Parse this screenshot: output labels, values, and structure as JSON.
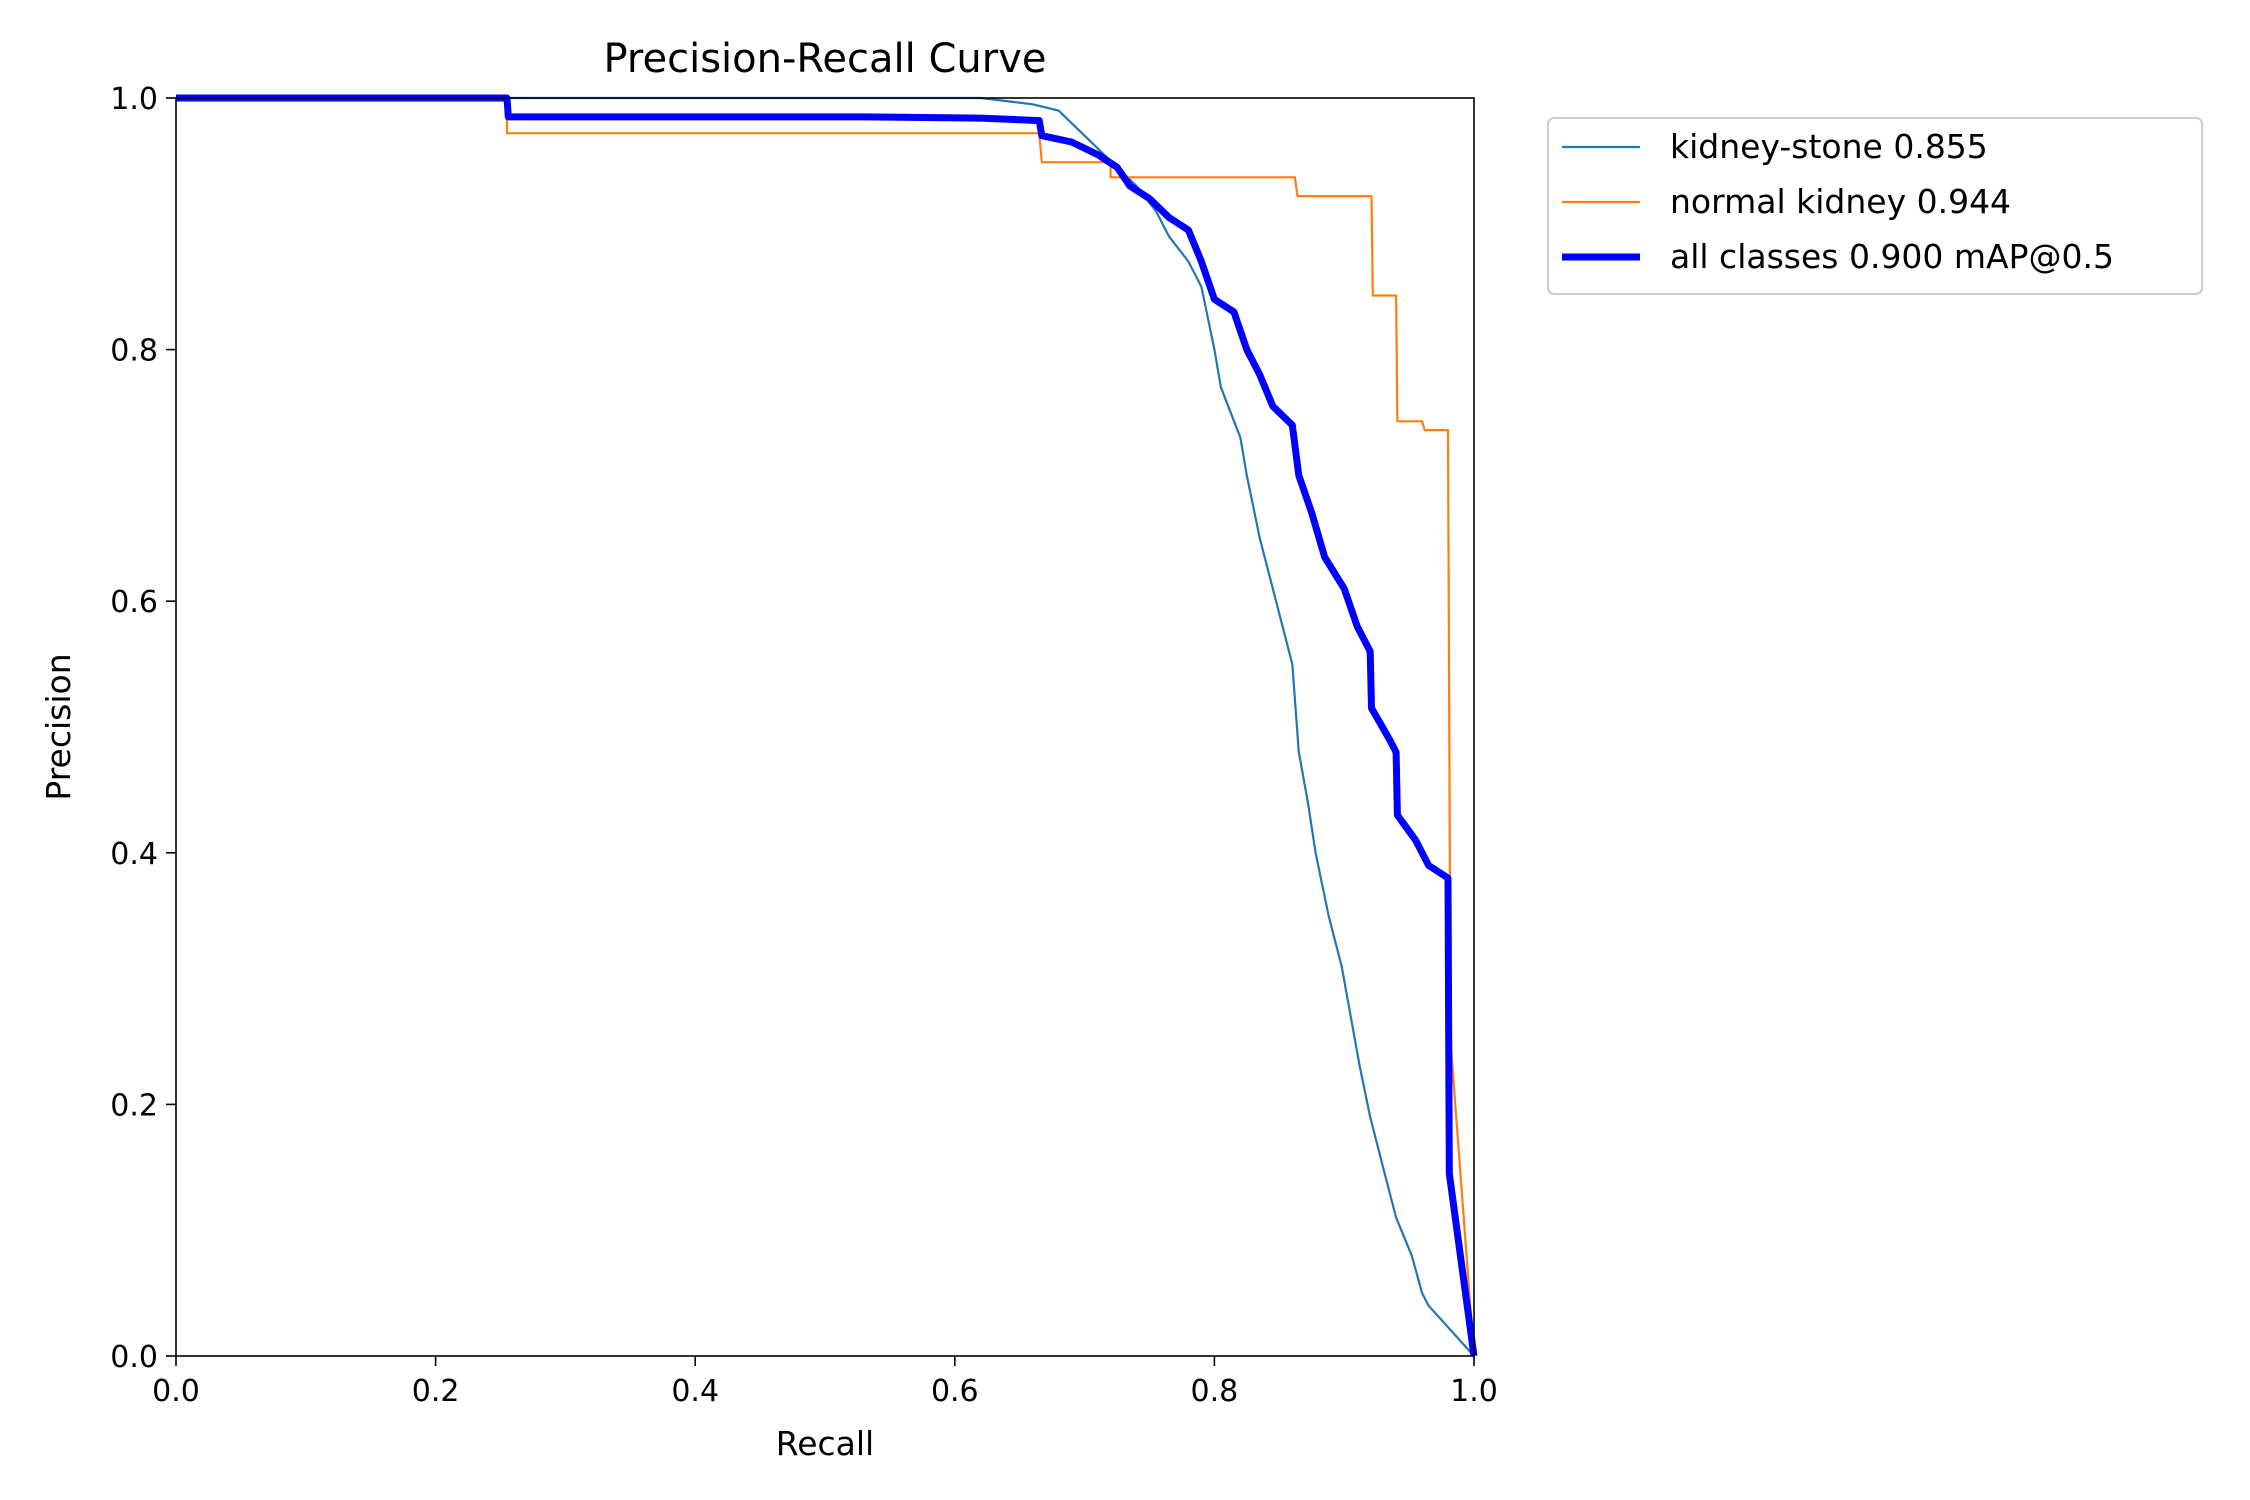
{
  "chart_data": {
    "type": "line",
    "title": "Precision-Recall Curve",
    "xlabel": "Recall",
    "ylabel": "Precision",
    "xlim": [
      0,
      1
    ],
    "ylim": [
      0,
      1
    ],
    "xticks": [
      "0.0",
      "0.2",
      "0.4",
      "0.6",
      "0.8",
      "1.0"
    ],
    "yticks": [
      "0.0",
      "0.2",
      "0.4",
      "0.6",
      "0.8",
      "1.0"
    ],
    "grid": false,
    "legend_placement": "outside-top-right",
    "series": [
      {
        "name": "kidney-stone 0.855",
        "color": "#1f77b4",
        "x": [
          0,
          0.62,
          0.66,
          0.68,
          0.7,
          0.72,
          0.74,
          0.755,
          0.765,
          0.78,
          0.79,
          0.8,
          0.805,
          0.82,
          0.825,
          0.835,
          0.845,
          0.855,
          0.86,
          0.865,
          0.872,
          0.878,
          0.888,
          0.898,
          0.905,
          0.912,
          0.92,
          0.93,
          0.94,
          0.952,
          0.96,
          0.965,
          1.0
        ],
        "y": [
          1,
          1,
          0.995,
          0.99,
          0.97,
          0.95,
          0.93,
          0.91,
          0.89,
          0.87,
          0.85,
          0.8,
          0.77,
          0.73,
          0.7,
          0.65,
          0.61,
          0.57,
          0.55,
          0.48,
          0.44,
          0.4,
          0.35,
          0.31,
          0.27,
          0.23,
          0.19,
          0.15,
          0.11,
          0.08,
          0.05,
          0.04,
          0
        ]
      },
      {
        "name": "normal kidney 0.944",
        "color": "#ff7f0e",
        "x": [
          0,
          0.255,
          0.255,
          0.665,
          0.667,
          0.72,
          0.72,
          0.862,
          0.864,
          0.921,
          0.922,
          0.94,
          0.941,
          0.96,
          0.962,
          0.98,
          0.982,
          1.0
        ],
        "y": [
          1,
          1,
          0.972,
          0.972,
          0.949,
          0.949,
          0.937,
          0.937,
          0.922,
          0.922,
          0.843,
          0.843,
          0.743,
          0.743,
          0.736,
          0.736,
          0.25,
          0
        ]
      },
      {
        "name": "all classes 0.900 mAP@0.5",
        "color": "#0000ff",
        "x": [
          0,
          0.255,
          0.256,
          0.53,
          0.62,
          0.665,
          0.667,
          0.69,
          0.71,
          0.725,
          0.735,
          0.75,
          0.765,
          0.78,
          0.79,
          0.8,
          0.815,
          0.825,
          0.835,
          0.845,
          0.86,
          0.865,
          0.875,
          0.885,
          0.9,
          0.91,
          0.92,
          0.921,
          0.935,
          0.94,
          0.941,
          0.955,
          0.965,
          0.98,
          0.981,
          1.0
        ],
        "y": [
          1,
          1,
          0.985,
          0.985,
          0.984,
          0.982,
          0.97,
          0.965,
          0.955,
          0.945,
          0.93,
          0.92,
          0.905,
          0.895,
          0.87,
          0.84,
          0.83,
          0.8,
          0.78,
          0.755,
          0.74,
          0.7,
          0.67,
          0.635,
          0.61,
          0.58,
          0.56,
          0.515,
          0.49,
          0.48,
          0.43,
          0.41,
          0.39,
          0.38,
          0.145,
          0
        ]
      }
    ]
  }
}
